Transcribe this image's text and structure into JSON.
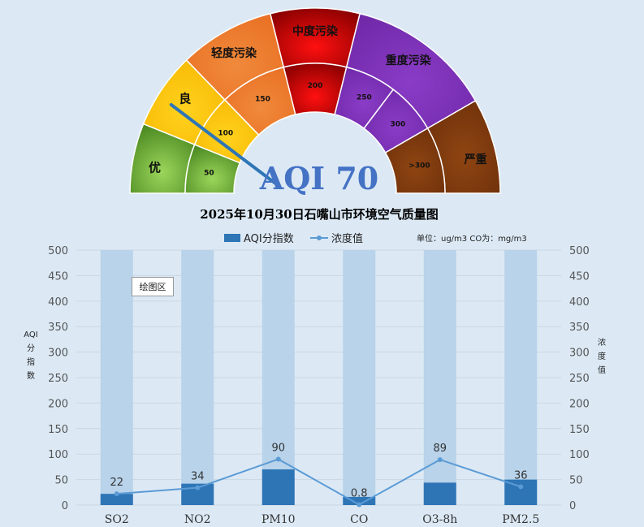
{
  "gauge": {
    "aqi_label": "AQI 70",
    "aqi_value": 70,
    "levels": [
      {
        "name": "优",
        "color": "#78b93c"
      },
      {
        "name": "良",
        "color": "#ffc000"
      },
      {
        "name": "轻度污染",
        "color": "#ed7d31"
      },
      {
        "name": "中度污染",
        "color": "#e00000"
      },
      {
        "name": "重度污染",
        "color": "#7b2fb5"
      },
      {
        "name": "严重",
        "color": "#843c0c"
      }
    ],
    "ticks": [
      "50",
      "100",
      "150",
      "200",
      "250",
      "300",
      ">300"
    ]
  },
  "chart_data": {
    "type": "bar",
    "title": "2025年10月30日石嘴山市环境空气质量图",
    "unit_note": "单位：ug/m3   CO为：mg/m3",
    "categories": [
      "SO2",
      "NO2",
      "PM10",
      "CO",
      "O3-8h",
      "PM2.5"
    ],
    "series": [
      {
        "name": "AQI分指数",
        "kind": "bar",
        "color": "#2e75b6",
        "values": [
          22,
          42,
          70,
          16,
          44,
          50
        ]
      },
      {
        "name": "浓度值",
        "kind": "line",
        "color": "#5b9bd5",
        "values": [
          22,
          34,
          90,
          0.8,
          89,
          36
        ],
        "labels": [
          "22",
          "34",
          "90",
          "0.8",
          "89",
          "36"
        ]
      }
    ],
    "background_bar": {
      "color": "#b8d3ea",
      "value": 500
    },
    "y_left": {
      "title": "AQI分指数",
      "min": 0,
      "max": 500,
      "ticks": [
        0,
        50,
        100,
        150,
        200,
        250,
        300,
        350,
        400,
        450,
        500
      ]
    },
    "y_right": {
      "title": "浓度值",
      "min": 0,
      "max": 500,
      "ticks": [
        0,
        50,
        100,
        150,
        200,
        250,
        300,
        350,
        400,
        450,
        500
      ]
    },
    "legend_position": "top",
    "grid": true
  },
  "plot_tip": "绘图区"
}
